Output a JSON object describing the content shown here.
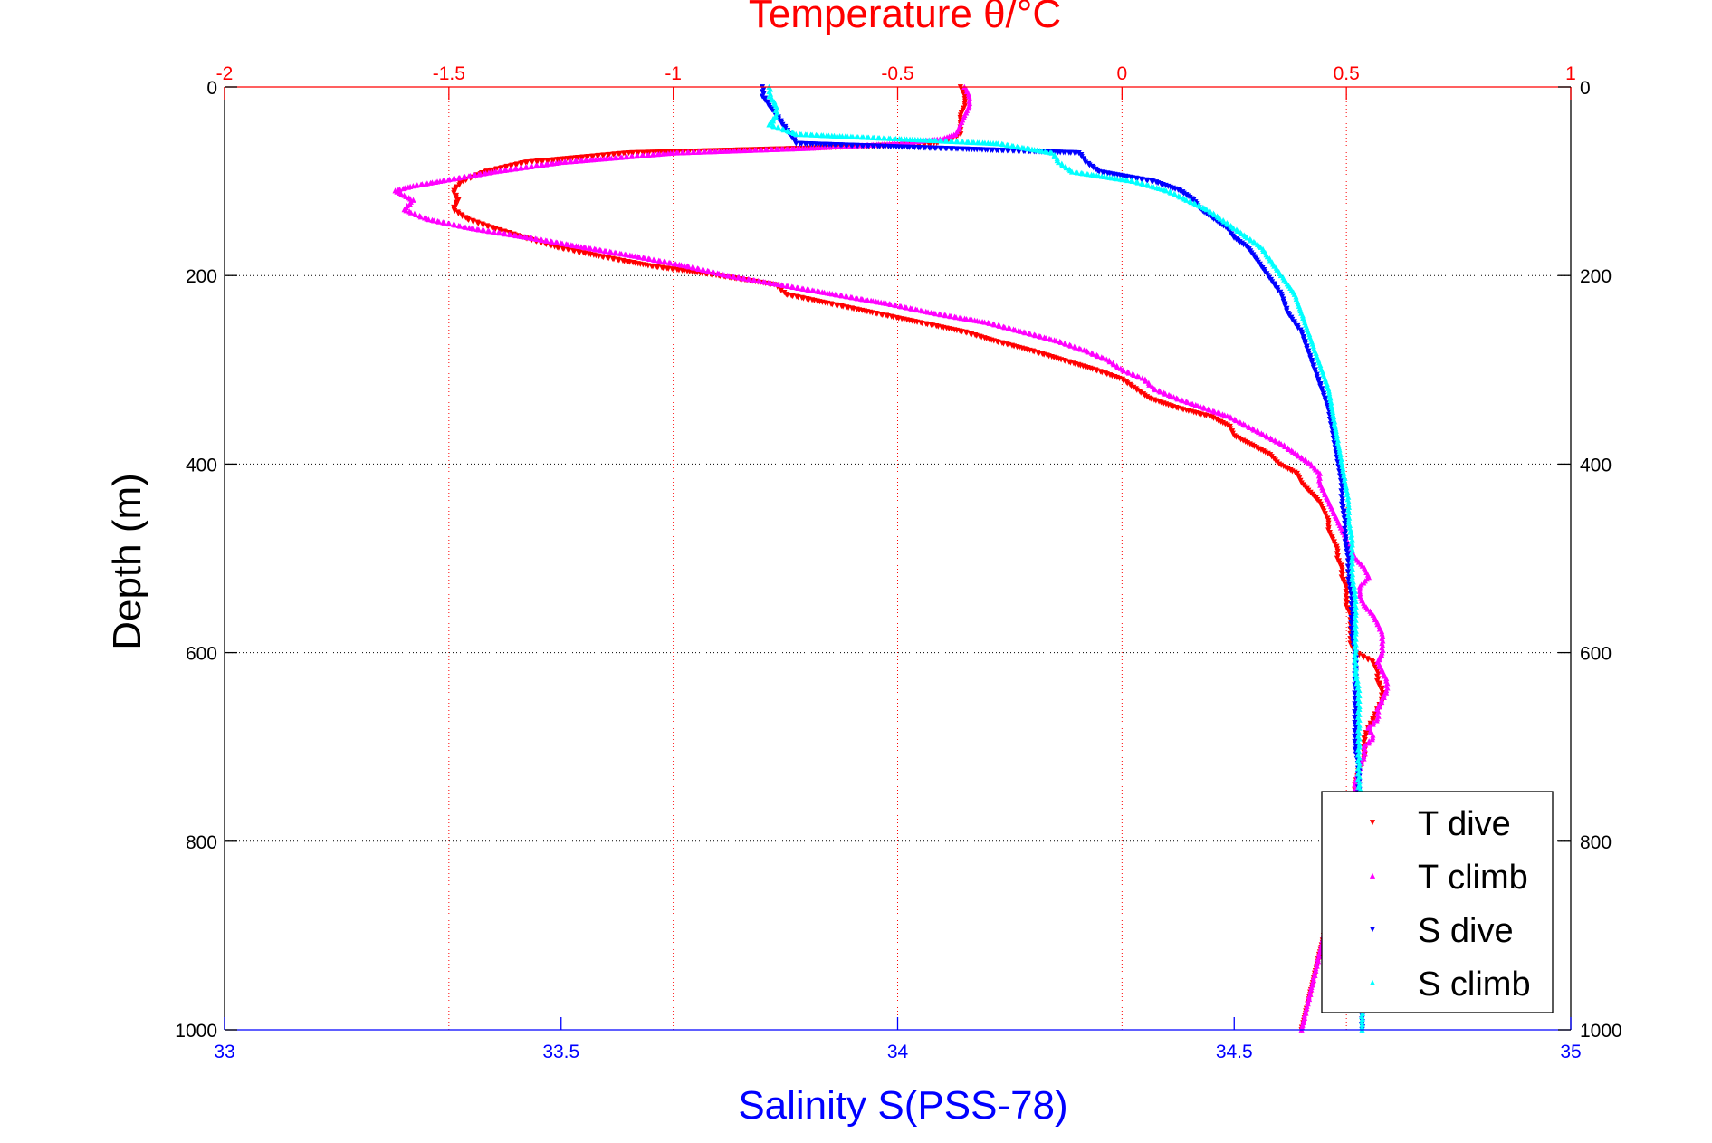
{
  "chart_data": {
    "type": "scatter",
    "top_axis": {
      "label": "Temperature θ/°C",
      "range": [
        -2,
        1
      ],
      "ticks": [
        -2,
        -1.5,
        -1,
        -0.5,
        0,
        0.5,
        1
      ],
      "tick_labels": [
        "-2",
        "-1.5",
        "-1",
        "-0.5",
        "0",
        "0.5",
        "1"
      ],
      "color": "#ff0000"
    },
    "bottom_axis": {
      "label": "Salinity S(PSS-78)",
      "range": [
        33,
        35
      ],
      "ticks": [
        33,
        33.5,
        34,
        34.5,
        35
      ],
      "tick_labels": [
        "33",
        "33.5",
        "34",
        "34.5",
        "35"
      ],
      "color": "#0000ff"
    },
    "y_axis": {
      "label": "Depth (m)",
      "range": [
        0,
        1000
      ],
      "reversed": true,
      "ticks": [
        0,
        200,
        400,
        600,
        800,
        1000
      ],
      "tick_labels": [
        "0",
        "200",
        "400",
        "600",
        "800",
        "1000"
      ]
    },
    "grid": true,
    "legend_position": "bottom-right",
    "series": [
      {
        "name": "T dive",
        "axis": "temperature",
        "color": "#ff0000",
        "marker": "triangle-down",
        "depth": [
          0,
          10,
          20,
          30,
          40,
          50,
          55,
          60,
          65,
          70,
          80,
          90,
          100,
          110,
          120,
          130,
          140,
          150,
          160,
          170,
          180,
          190,
          200,
          210,
          220,
          230,
          240,
          250,
          260,
          270,
          280,
          290,
          300,
          310,
          320,
          330,
          340,
          350,
          360,
          370,
          380,
          390,
          400,
          410,
          420,
          430,
          440,
          450,
          460,
          470,
          480,
          490,
          500,
          510,
          520,
          530,
          540,
          550,
          560,
          570,
          580,
          590,
          600,
          610,
          620,
          630,
          640,
          650,
          660,
          670,
          680,
          690,
          700,
          710,
          720,
          740,
          760,
          780,
          800,
          820,
          840,
          860,
          880,
          900,
          920,
          940,
          960,
          980,
          1000
        ],
        "values": [
          -0.36,
          -0.35,
          -0.35,
          -0.36,
          -0.36,
          -0.36,
          -0.38,
          -0.42,
          -0.7,
          -1.1,
          -1.33,
          -1.42,
          -1.47,
          -1.49,
          -1.48,
          -1.49,
          -1.46,
          -1.4,
          -1.33,
          -1.26,
          -1.16,
          -1.05,
          -0.9,
          -0.77,
          -0.75,
          -0.65,
          -0.55,
          -0.45,
          -0.35,
          -0.28,
          -0.2,
          -0.13,
          -0.06,
          0.0,
          0.03,
          0.06,
          0.12,
          0.2,
          0.24,
          0.25,
          0.29,
          0.33,
          0.35,
          0.39,
          0.4,
          0.42,
          0.44,
          0.45,
          0.46,
          0.46,
          0.47,
          0.48,
          0.48,
          0.49,
          0.49,
          0.5,
          0.5,
          0.5,
          0.51,
          0.51,
          0.51,
          0.51,
          0.52,
          0.56,
          0.57,
          0.57,
          0.58,
          0.58,
          0.57,
          0.56,
          0.55,
          0.54,
          0.54,
          0.54,
          0.53,
          0.52,
          0.52,
          0.51,
          0.5,
          0.49,
          0.48,
          0.47,
          0.46,
          0.45,
          0.44,
          0.43,
          0.42,
          0.41,
          0.4
        ]
      },
      {
        "name": "T climb",
        "axis": "temperature",
        "color": "#ff00ff",
        "marker": "triangle-up",
        "depth": [
          0,
          10,
          20,
          30,
          40,
          50,
          55,
          60,
          65,
          70,
          80,
          90,
          100,
          105,
          110,
          115,
          120,
          130,
          140,
          150,
          160,
          170,
          180,
          190,
          200,
          210,
          220,
          230,
          240,
          250,
          260,
          270,
          280,
          290,
          300,
          310,
          320,
          330,
          340,
          350,
          360,
          370,
          380,
          390,
          400,
          410,
          420,
          430,
          440,
          450,
          460,
          470,
          480,
          490,
          500,
          510,
          520,
          530,
          540,
          550,
          560,
          570,
          580,
          590,
          600,
          610,
          620,
          630,
          640,
          650,
          660,
          670,
          680,
          690,
          700,
          710,
          720,
          740,
          760,
          780,
          800,
          820,
          840,
          860,
          880,
          900,
          920,
          940,
          960,
          980,
          1000
        ],
        "values": [
          -0.35,
          -0.34,
          -0.34,
          -0.35,
          -0.36,
          -0.37,
          -0.4,
          -0.5,
          -0.7,
          -1.0,
          -1.25,
          -1.4,
          -1.52,
          -1.58,
          -1.62,
          -1.6,
          -1.58,
          -1.6,
          -1.55,
          -1.45,
          -1.32,
          -1.2,
          -1.08,
          -0.97,
          -0.88,
          -0.76,
          -0.64,
          -0.52,
          -0.42,
          -0.3,
          -0.22,
          -0.14,
          -0.08,
          -0.03,
          0.0,
          0.05,
          0.07,
          0.12,
          0.18,
          0.24,
          0.28,
          0.32,
          0.36,
          0.39,
          0.42,
          0.44,
          0.44,
          0.45,
          0.46,
          0.47,
          0.48,
          0.49,
          0.5,
          0.51,
          0.52,
          0.54,
          0.55,
          0.53,
          0.53,
          0.54,
          0.56,
          0.57,
          0.58,
          0.58,
          0.58,
          0.57,
          0.58,
          0.59,
          0.59,
          0.58,
          0.57,
          0.57,
          0.55,
          0.56,
          0.54,
          0.54,
          0.53,
          0.52,
          0.52,
          0.51,
          0.5,
          0.49,
          0.48,
          0.47,
          0.46,
          0.45,
          0.44,
          0.43,
          0.42,
          0.41,
          0.4
        ]
      },
      {
        "name": "S dive",
        "axis": "salinity",
        "color": "#0000ff",
        "marker": "triangle-down",
        "depth": [
          0,
          10,
          20,
          30,
          40,
          50,
          60,
          70,
          80,
          90,
          100,
          110,
          120,
          130,
          140,
          150,
          160,
          170,
          180,
          190,
          200,
          220,
          240,
          260,
          280,
          300,
          320,
          340,
          360,
          380,
          400,
          420,
          440,
          460,
          480,
          500,
          520,
          540,
          560,
          580,
          600,
          620,
          640,
          660,
          680,
          700,
          720,
          740,
          760,
          780,
          800,
          840,
          880,
          920,
          960,
          1000
        ],
        "values": [
          33.8,
          33.8,
          33.81,
          33.82,
          33.83,
          33.84,
          33.85,
          34.27,
          34.28,
          34.3,
          34.38,
          34.42,
          34.44,
          34.45,
          34.47,
          34.49,
          34.5,
          34.52,
          34.53,
          34.54,
          34.55,
          34.57,
          34.58,
          34.6,
          34.61,
          34.62,
          34.63,
          34.64,
          34.645,
          34.65,
          34.655,
          34.66,
          34.66,
          34.665,
          34.665,
          34.67,
          34.67,
          34.675,
          34.675,
          34.675,
          34.68,
          34.68,
          34.68,
          34.68,
          34.68,
          34.68,
          34.685,
          34.685,
          34.685,
          34.685,
          34.685,
          34.685,
          34.685,
          34.69,
          34.69,
          34.69
        ]
      },
      {
        "name": "S climb",
        "axis": "salinity",
        "color": "#00ffff",
        "marker": "triangle-up",
        "depth": [
          0,
          10,
          20,
          30,
          40,
          50,
          60,
          70,
          80,
          90,
          100,
          110,
          120,
          130,
          140,
          150,
          160,
          170,
          180,
          190,
          200,
          220,
          240,
          260,
          280,
          300,
          320,
          340,
          360,
          380,
          400,
          420,
          440,
          460,
          480,
          500,
          520,
          540,
          560,
          580,
          600,
          620,
          640,
          660,
          680,
          700,
          720,
          740,
          760,
          780,
          800,
          840,
          880,
          920,
          960,
          1000
        ],
        "values": [
          33.81,
          33.81,
          33.82,
          33.82,
          33.81,
          33.85,
          34.15,
          34.23,
          34.24,
          34.26,
          34.35,
          34.4,
          34.43,
          34.46,
          34.48,
          34.5,
          34.52,
          34.54,
          34.55,
          34.56,
          34.57,
          34.59,
          34.6,
          34.61,
          34.62,
          34.63,
          34.64,
          34.645,
          34.65,
          34.655,
          34.66,
          34.665,
          34.67,
          34.67,
          34.675,
          34.675,
          34.675,
          34.68,
          34.68,
          34.68,
          34.68,
          34.68,
          34.685,
          34.685,
          34.685,
          34.685,
          34.685,
          34.685,
          34.69,
          34.69,
          34.69,
          34.69,
          34.69,
          34.69,
          34.69,
          34.69
        ]
      }
    ]
  }
}
